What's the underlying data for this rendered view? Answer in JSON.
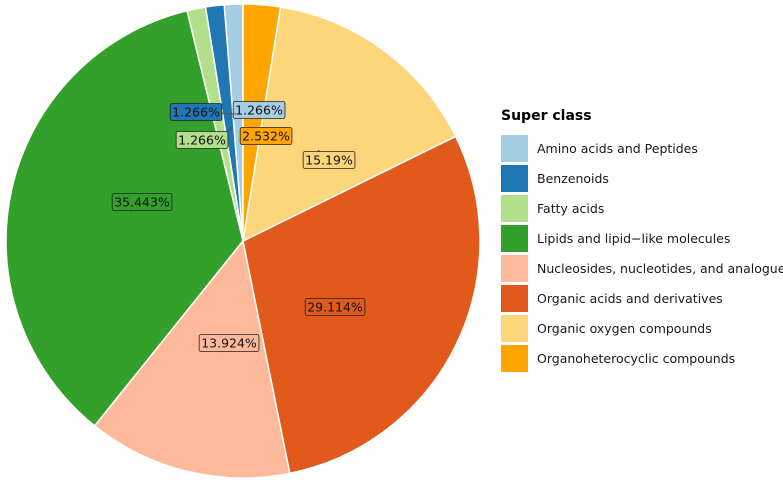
{
  "chart_data": {
    "type": "pie",
    "legend_title": "Super class",
    "legend_position": "right",
    "slices": [
      {
        "name": "Amino acids and Peptides",
        "value": 1.266,
        "label": "1.266%",
        "color": "#A6CEE3"
      },
      {
        "name": "Benzenoids",
        "value": 1.266,
        "label": "1.266%",
        "color": "#1F78B4"
      },
      {
        "name": "Fatty acids",
        "value": 1.266,
        "label": "1.266%",
        "color": "#B2DF8A"
      },
      {
        "name": "Lipids and lipid−like molecules",
        "value": 35.443,
        "label": "35.443%",
        "color": "#33A02C"
      },
      {
        "name": "Nucleosides, nucleotides, and analogues",
        "value": 13.924,
        "label": "13.924%",
        "color": "#FDB99A"
      },
      {
        "name": "Organic acids and derivatives",
        "value": 29.114,
        "label": "29.114%",
        "color": "#E15A1B"
      },
      {
        "name": "Organic oxygen compounds",
        "value": 15.19,
        "label": "15.19%",
        "color": "#FDD57A"
      },
      {
        "name": "Organoheterocyclic compounds",
        "value": 2.532,
        "label": "2.532%",
        "color": "#FFA500"
      }
    ]
  }
}
